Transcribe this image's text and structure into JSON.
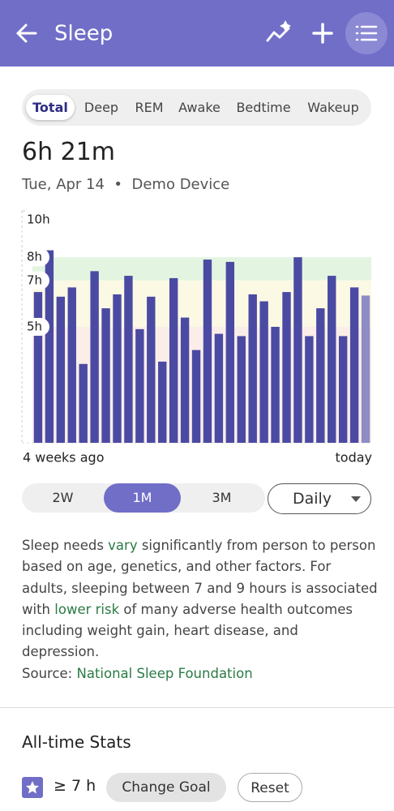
{
  "header": {
    "title": "Sleep"
  },
  "tabs": {
    "items": [
      "Total",
      "Deep",
      "REM",
      "Awake",
      "Bedtime",
      "Wakeup"
    ],
    "selected": 0
  },
  "summary": {
    "value": "6h 21m",
    "date": "Tue, Apr 14",
    "separator": "•",
    "device": "Demo Device"
  },
  "chart_data": {
    "type": "bar",
    "values": [
      6.5,
      8.3,
      6.3,
      6.7,
      3.4,
      7.4,
      5.8,
      6.4,
      7.2,
      4.9,
      6.3,
      3.5,
      7.1,
      5.4,
      4.0,
      7.9,
      4.7,
      7.8,
      4.6,
      6.4,
      6.1,
      5.0,
      6.5,
      8.0,
      4.6,
      5.8,
      7.2,
      4.6,
      6.7,
      6.35
    ],
    "color": "#4b4aa3",
    "last_color": "#8e8cc4",
    "ylim": [
      0,
      10
    ],
    "yticks": [
      {
        "value": 10,
        "label": "10h"
      },
      {
        "value": 8,
        "label": "8h"
      },
      {
        "value": 7,
        "label": "7h"
      },
      {
        "value": 5,
        "label": "5h"
      }
    ],
    "bands": [
      {
        "from": 7,
        "to": 8,
        "color": "#e3f5e1"
      },
      {
        "from": 5,
        "to": 7,
        "color": "#fbf9e4"
      },
      {
        "from": 0,
        "to": 5,
        "color": "#fbeee9"
      }
    ],
    "x_start_label": "4 weeks ago",
    "x_end_label": "today"
  },
  "range": {
    "items": [
      "2W",
      "1M",
      "3M"
    ],
    "selected": 1,
    "dropdown": "Daily"
  },
  "description": {
    "segments": [
      {
        "text": "Sleep needs "
      },
      {
        "text": "vary",
        "link": true
      },
      {
        "text": " significantly from person to person based on age, genetics, and other factors. For adults, sleeping between 7 and 9 hours is associated with "
      },
      {
        "text": "lower risk",
        "link": true
      },
      {
        "text": " of many adverse health outcomes including weight gain, heart disease, and depression."
      }
    ],
    "source_label": "Source: ",
    "source_link": "National Sleep Foundation"
  },
  "stats": {
    "title": "All-time Stats",
    "goal": "≥ 7 h",
    "change_button": "Change Goal",
    "reset_button": "Reset"
  }
}
